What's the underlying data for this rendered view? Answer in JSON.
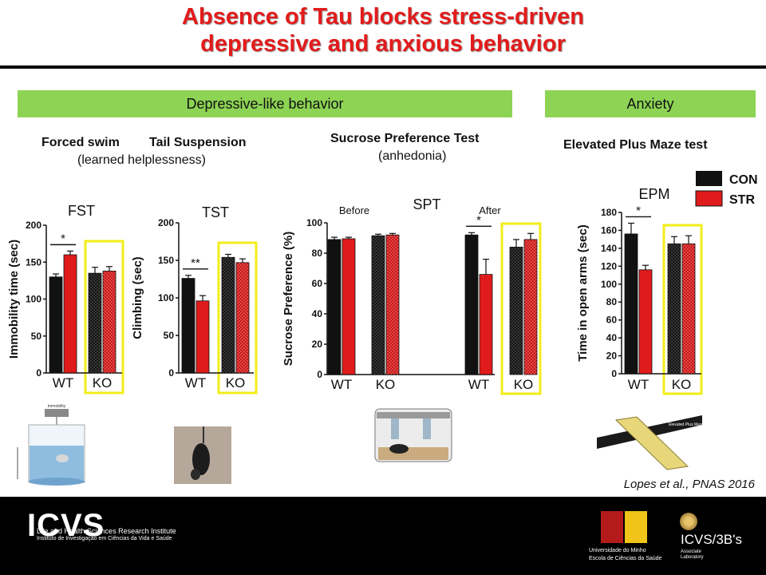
{
  "slide": {
    "title_line1": "Absence of Tau blocks stress-driven",
    "title_line2": "depressive and anxious behavior",
    "banner_depressive": "Depressive-like behavior",
    "banner_anxiety": "Anxiety",
    "forced_swim": "Forced swim",
    "tail_suspension": "Tail Suspension",
    "learned_helplessness": "(learned helplessness)",
    "sucrose_test": "Sucrose Preference Test",
    "anhedonia": "(anhedonia)",
    "epm_test": "Elevated Plus Maze test",
    "citation": "Lopes et al., PNAS 2016",
    "legend": [
      {
        "label": "CON",
        "color": "#111111"
      },
      {
        "label": "STR",
        "color": "#e01b1b"
      }
    ],
    "photo_captions": {
      "fst": "Immobility",
      "epm": "Elevated Plus Maze"
    }
  },
  "footer": {
    "logo_text": "ICVS",
    "institute_line1": "Life and Health Sciences Research Institute",
    "institute_line2": "Instituto de Investigação em Ciências da Vida e Saúde",
    "uminho_line1": "Universidade do Minho",
    "uminho_line2": "Escola de Ciências da Saúde",
    "icvs3bs": "ICVS/3B's",
    "assoc_line1": "Associate",
    "assoc_line2": "Laboratory"
  },
  "chart_data": [
    {
      "type": "bar",
      "title": "FST",
      "ylabel": "Immobility time (sec)",
      "ylim": [
        0,
        200
      ],
      "yticks": [
        0,
        50,
        100,
        150,
        200
      ],
      "groups": [
        {
          "label": "WT",
          "con": 130,
          "con_err": 4,
          "str": 160,
          "str_err": 5,
          "highlight": false,
          "sig": "*"
        },
        {
          "label": "KO",
          "con": 135,
          "con_err": 8,
          "str": 138,
          "str_err": 6,
          "highlight": true,
          "sig": ""
        }
      ]
    },
    {
      "type": "bar",
      "title": "TST",
      "ylabel": "Climbing (sec)",
      "ylim": [
        0,
        200
      ],
      "yticks": [
        0,
        50,
        100,
        150,
        200
      ],
      "groups": [
        {
          "label": "WT",
          "con": 126,
          "con_err": 4,
          "str": 96,
          "str_err": 7,
          "highlight": false,
          "sig": "**"
        },
        {
          "label": "KO",
          "con": 154,
          "con_err": 4,
          "str": 147,
          "str_err": 5,
          "highlight": true,
          "sig": ""
        }
      ]
    },
    {
      "type": "bar",
      "title": "SPT",
      "ylabel": "Sucrose Preference (%)",
      "ylim": [
        0,
        100
      ],
      "yticks": [
        0,
        20,
        40,
        60,
        80,
        100
      ],
      "section_labels": [
        "Before",
        "After"
      ],
      "groups": [
        {
          "label": "WT",
          "con": 89,
          "con_err": 1.5,
          "str": 89.5,
          "str_err": 1,
          "highlight": false,
          "sig": "",
          "section": 0
        },
        {
          "label": "KO",
          "con": 91.5,
          "con_err": 1,
          "str": 92,
          "str_err": 1,
          "highlight": false,
          "sig": "",
          "section": 0
        },
        {
          "label": "WT",
          "con": 92,
          "con_err": 1.5,
          "str": 66,
          "str_err": 10,
          "highlight": false,
          "sig": "*",
          "section": 1
        },
        {
          "label": "KO",
          "con": 84,
          "con_err": 5,
          "str": 89,
          "str_err": 4,
          "highlight": true,
          "sig": "",
          "section": 1
        }
      ]
    },
    {
      "type": "bar",
      "title": "EPM",
      "ylabel": "Time in open arms (sec)",
      "ylim": [
        0,
        180
      ],
      "yticks": [
        0,
        20,
        40,
        60,
        80,
        100,
        120,
        140,
        160,
        180
      ],
      "groups": [
        {
          "label": "WT",
          "con": 156,
          "con_err": 12,
          "str": 116,
          "str_err": 5,
          "highlight": false,
          "sig": "*"
        },
        {
          "label": "KO",
          "con": 145,
          "con_err": 8,
          "str": 145,
          "str_err": 9,
          "highlight": true,
          "sig": ""
        }
      ]
    }
  ]
}
